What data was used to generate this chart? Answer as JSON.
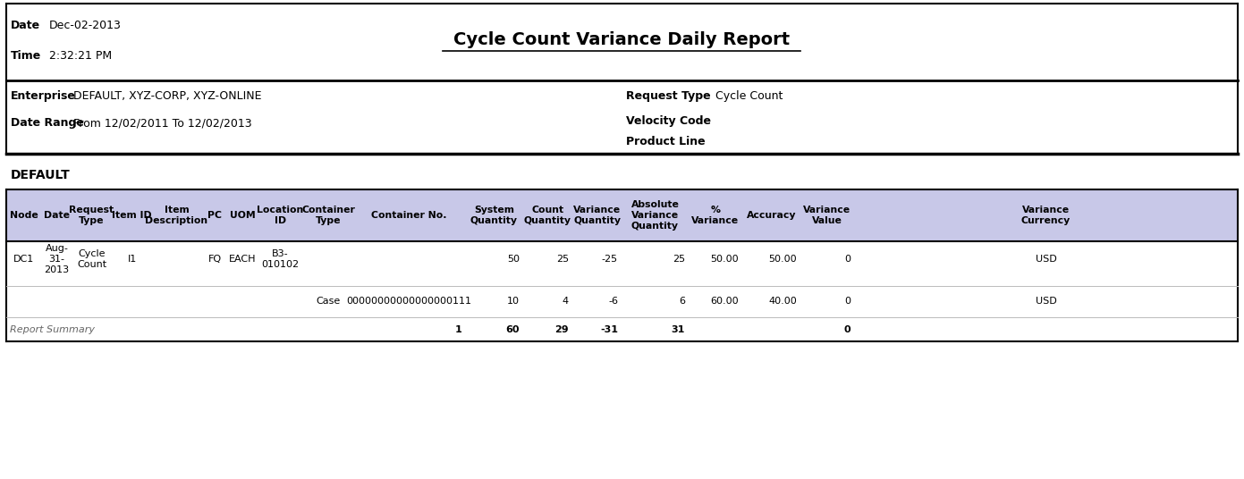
{
  "title": "Cycle Count Variance Daily Report",
  "date_label": "Date",
  "date_value": "Dec-02-2013",
  "time_label": "Time",
  "time_value": "2:32:21 PM",
  "enterprise_label": "Enterprise",
  "enterprise_value": "DEFAULT, XYZ-CORP, XYZ-ONLINE",
  "date_range_label": "Date Range",
  "date_range_value": "From 12/02/2011 To 12/02/2013",
  "request_type_label": "Request Type",
  "request_type_value": "Cycle Count",
  "velocity_code_label": "Velocity Code",
  "product_line_label": "Product Line",
  "section_label": "DEFAULT",
  "col_headers": [
    "Node",
    "Date",
    "Request\nType",
    "Item ID",
    "Item\nDescription",
    "PC",
    "UOM",
    "Location\nID",
    "Container\nType",
    "Container No.",
    "System\nQuantity",
    "Count\nQuantity",
    "Variance\nQuantity",
    "Absolute\nVariance\nQuantity",
    "%\nVariance",
    "Accuracy",
    "Variance\nValue",
    "Variance\nCurrency"
  ],
  "header_bg": "#c8c8e8",
  "row1": [
    "DC1",
    "Aug-\n31-\n2013",
    "Cycle\nCount",
    "I1",
    "",
    "FQ",
    "EACH",
    "B3-\n010102",
    "",
    "",
    "50",
    "25",
    "-25",
    "25",
    "50.00",
    "50.00",
    "0",
    "USD"
  ],
  "row2": [
    "",
    "",
    "",
    "",
    "",
    "",
    "",
    "",
    "Case",
    "00000000000000000111",
    "10",
    "4",
    "-6",
    "6",
    "60.00",
    "40.00",
    "0",
    "USD"
  ],
  "summary_row": [
    "Report Summary",
    "",
    "",
    "",
    "",
    "",
    "",
    "",
    "",
    "1",
    "60",
    "29",
    "-31",
    "31",
    "",
    "",
    "0",
    ""
  ],
  "bg_color": "#ffffff",
  "border_color": "#000000",
  "header_text_color": "#000000"
}
